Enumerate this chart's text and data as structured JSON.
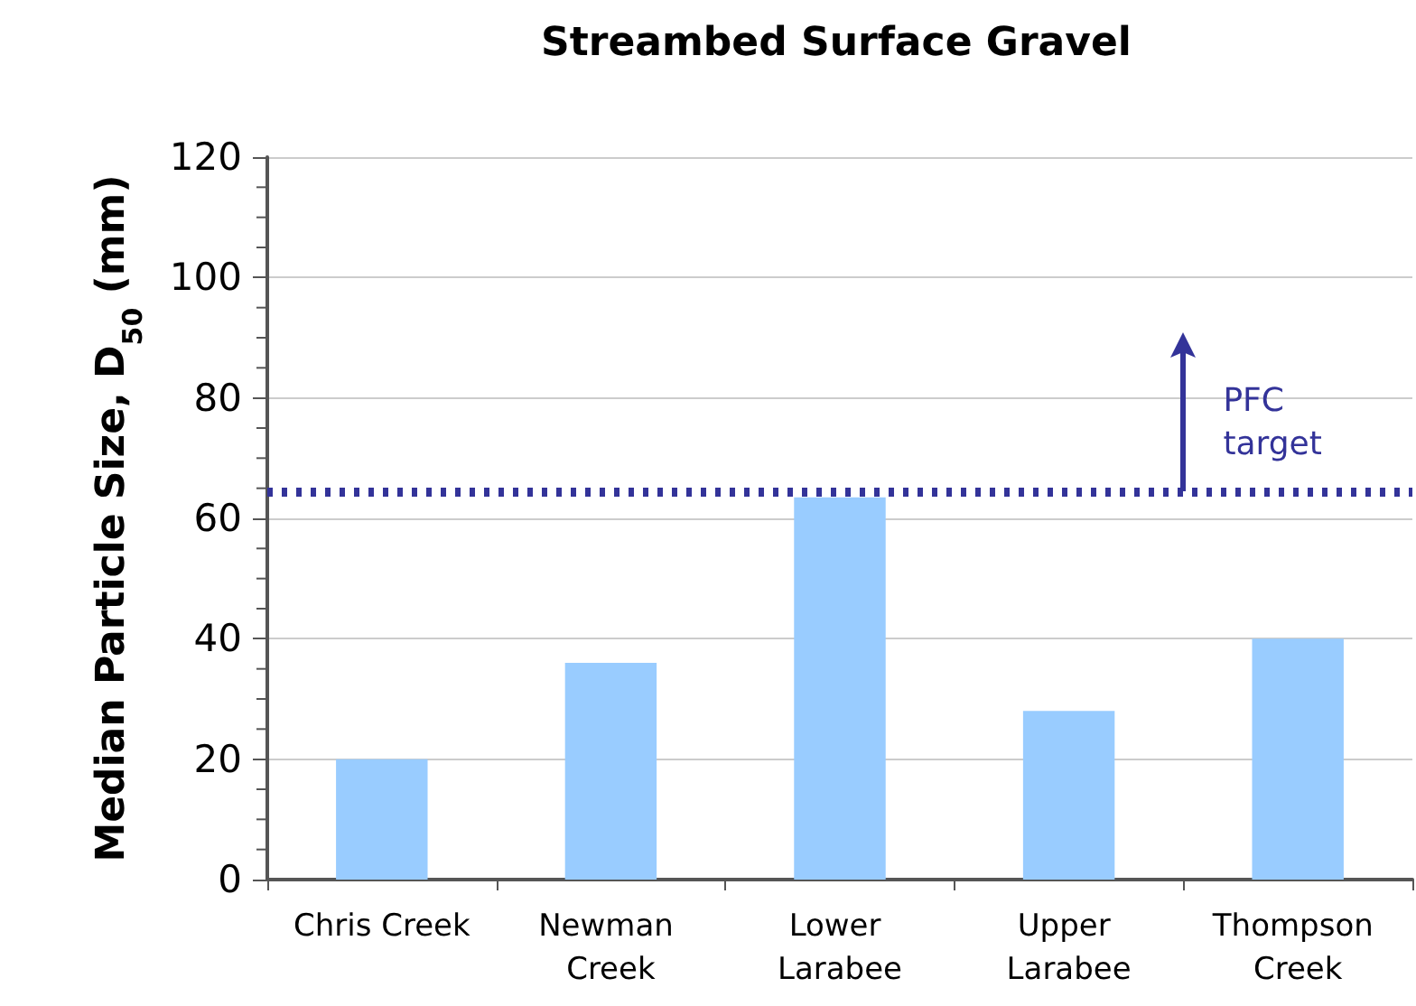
{
  "chart_data": {
    "type": "bar",
    "title": "Streambed Surface Gravel",
    "ylabel": "Median Particle Size, D$_{50}$ (mm)",
    "categories": [
      "Chris Creek",
      "Newman Creek",
      "Lower Larabee",
      "Upper Larabee",
      "Thompson Creek"
    ],
    "values": [
      20,
      36,
      63.5,
      28,
      40
    ],
    "color": "#99ccff",
    "ylim": [
      0,
      120
    ],
    "yticks": [
      0,
      20,
      40,
      60,
      80,
      100,
      120
    ],
    "grid": "y",
    "ref_lines": [
      {
        "axis": "y",
        "value": 64.5,
        "label": "PFC target",
        "color": "#333399",
        "line_style": "dotted"
      }
    ]
  }
}
